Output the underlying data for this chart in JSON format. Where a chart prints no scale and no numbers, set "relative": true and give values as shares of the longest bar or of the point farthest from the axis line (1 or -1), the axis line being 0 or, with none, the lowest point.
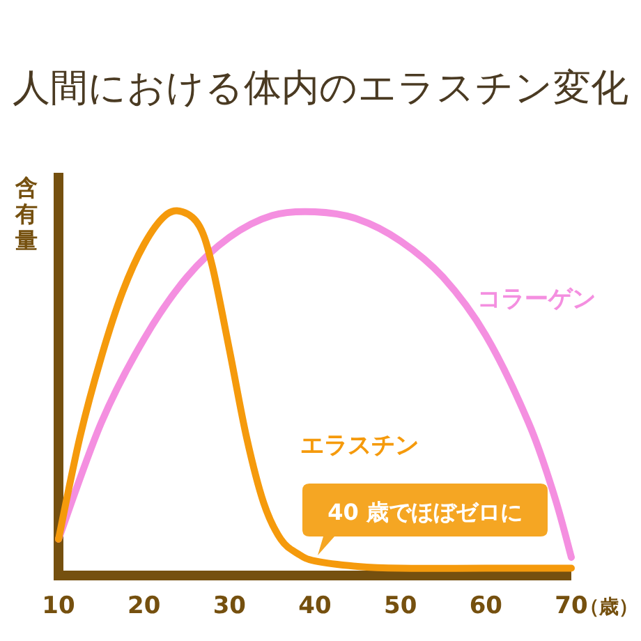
{
  "chart_data": {
    "type": "line",
    "title": "人間における体内のエラスチン変化",
    "xlabel": "（歳）",
    "ylabel": "含有量",
    "relative": true,
    "xlim": [
      10,
      70
    ],
    "xticks": [
      10,
      20,
      30,
      40,
      50,
      60,
      70
    ],
    "legend": false,
    "grid": false,
    "marker": "none",
    "line_style": "solid",
    "series": [
      {
        "name": "コラーゲン",
        "color": "#f48fe0",
        "x": [
          10,
          15,
          20,
          25,
          30,
          35,
          40,
          45,
          50,
          55,
          60,
          65,
          68,
          70
        ],
        "values": [
          0.1,
          0.42,
          0.65,
          0.82,
          0.93,
          0.99,
          1.0,
          0.98,
          0.92,
          0.82,
          0.66,
          0.42,
          0.22,
          0.05
        ]
      },
      {
        "name": "エラスチン",
        "color": "#f59a0c",
        "x": [
          10,
          12.5,
          15,
          17.5,
          20,
          22.5,
          24.5,
          26.5,
          28,
          30,
          32,
          34,
          36,
          38,
          40,
          45,
          50,
          60,
          70
        ],
        "values": [
          0.1,
          0.38,
          0.6,
          0.78,
          0.91,
          0.99,
          1.0,
          0.96,
          0.85,
          0.62,
          0.38,
          0.2,
          0.1,
          0.06,
          0.04,
          0.025,
          0.02,
          0.02,
          0.02
        ]
      }
    ],
    "annotations": [
      {
        "text": "40 歳でほぼゼロに",
        "x": 40,
        "y": 0.04
      }
    ]
  }
}
